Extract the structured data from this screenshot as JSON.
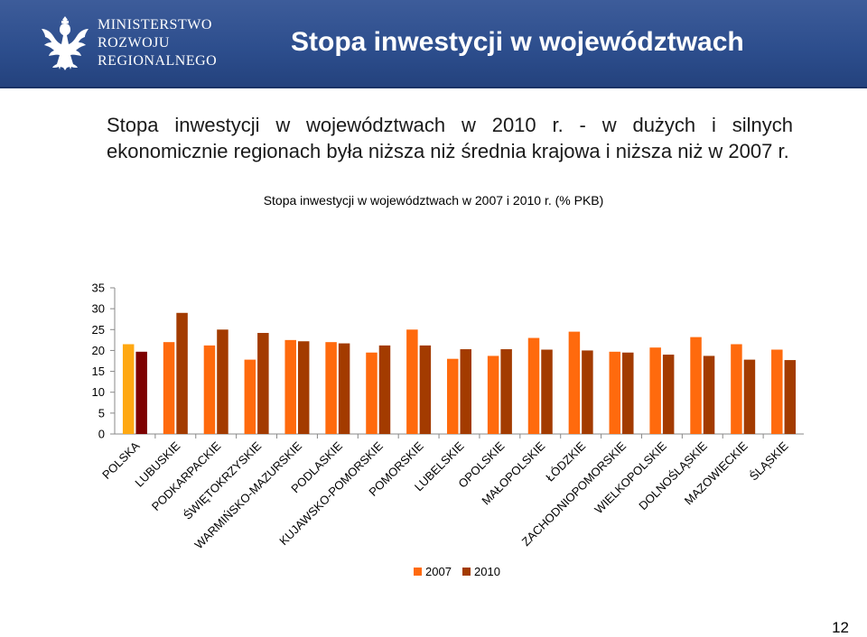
{
  "header": {
    "ministry_lines": [
      "MINISTERSTWO",
      "ROZWOJU",
      "REGIONALNEGO"
    ],
    "title": "Stopa inwestycji w województwach"
  },
  "intro_text": "Stopa inwestycji w województwach w 2010 r. - w dużych i silnych ekonomicznie regionach była niższa niż średnia krajowa i niższa niż w 2007 r.",
  "page_number": "12",
  "colors": {
    "header_bg": "#2c4d8c",
    "series_2007": "#ff6a0d",
    "series_2010": "#a33b00",
    "polska_2007": "#ffa812",
    "polska_2010": "#7d0000"
  },
  "chart_data": {
    "type": "bar",
    "title": "Stopa inwestycji w województwach w 2007 i 2010 r. (% PKB)",
    "categories": [
      "POLSKA",
      "LUBUSKIE",
      "PODKARPACKIE",
      "ŚWIĘTOKRZYSKIE",
      "WARMIŃSKO-MAZURSKIE",
      "PODLASKIE",
      "KUJAWSKO-POMORSKIE",
      "POMORSKIE",
      "LUBELSKIE",
      "OPOLSKIE",
      "MAŁOPOLSKIE",
      "ŁÓDZKIE",
      "ZACHODNIOPOMORSKIE",
      "WIELKOPOLSKIE",
      "DOLNOŚLĄSKIE",
      "MAZOWIECKIE",
      "ŚLĄSKIE"
    ],
    "series": [
      {
        "name": "2007",
        "values": [
          21.5,
          22,
          21.2,
          17.8,
          22.5,
          22,
          19.5,
          25,
          18,
          18.7,
          23,
          24.5,
          19.7,
          20.7,
          23.2,
          21.5,
          20.2
        ]
      },
      {
        "name": "2010",
        "values": [
          19.7,
          29,
          25,
          24.2,
          22.2,
          21.7,
          21.2,
          21.2,
          20.3,
          20.3,
          20.2,
          20,
          19.5,
          19,
          18.7,
          17.8,
          17.7
        ]
      }
    ],
    "yticks": [
      0,
      5,
      10,
      15,
      20,
      25,
      30,
      35
    ],
    "ylim": [
      0,
      35
    ],
    "legend_position": "bottom"
  }
}
